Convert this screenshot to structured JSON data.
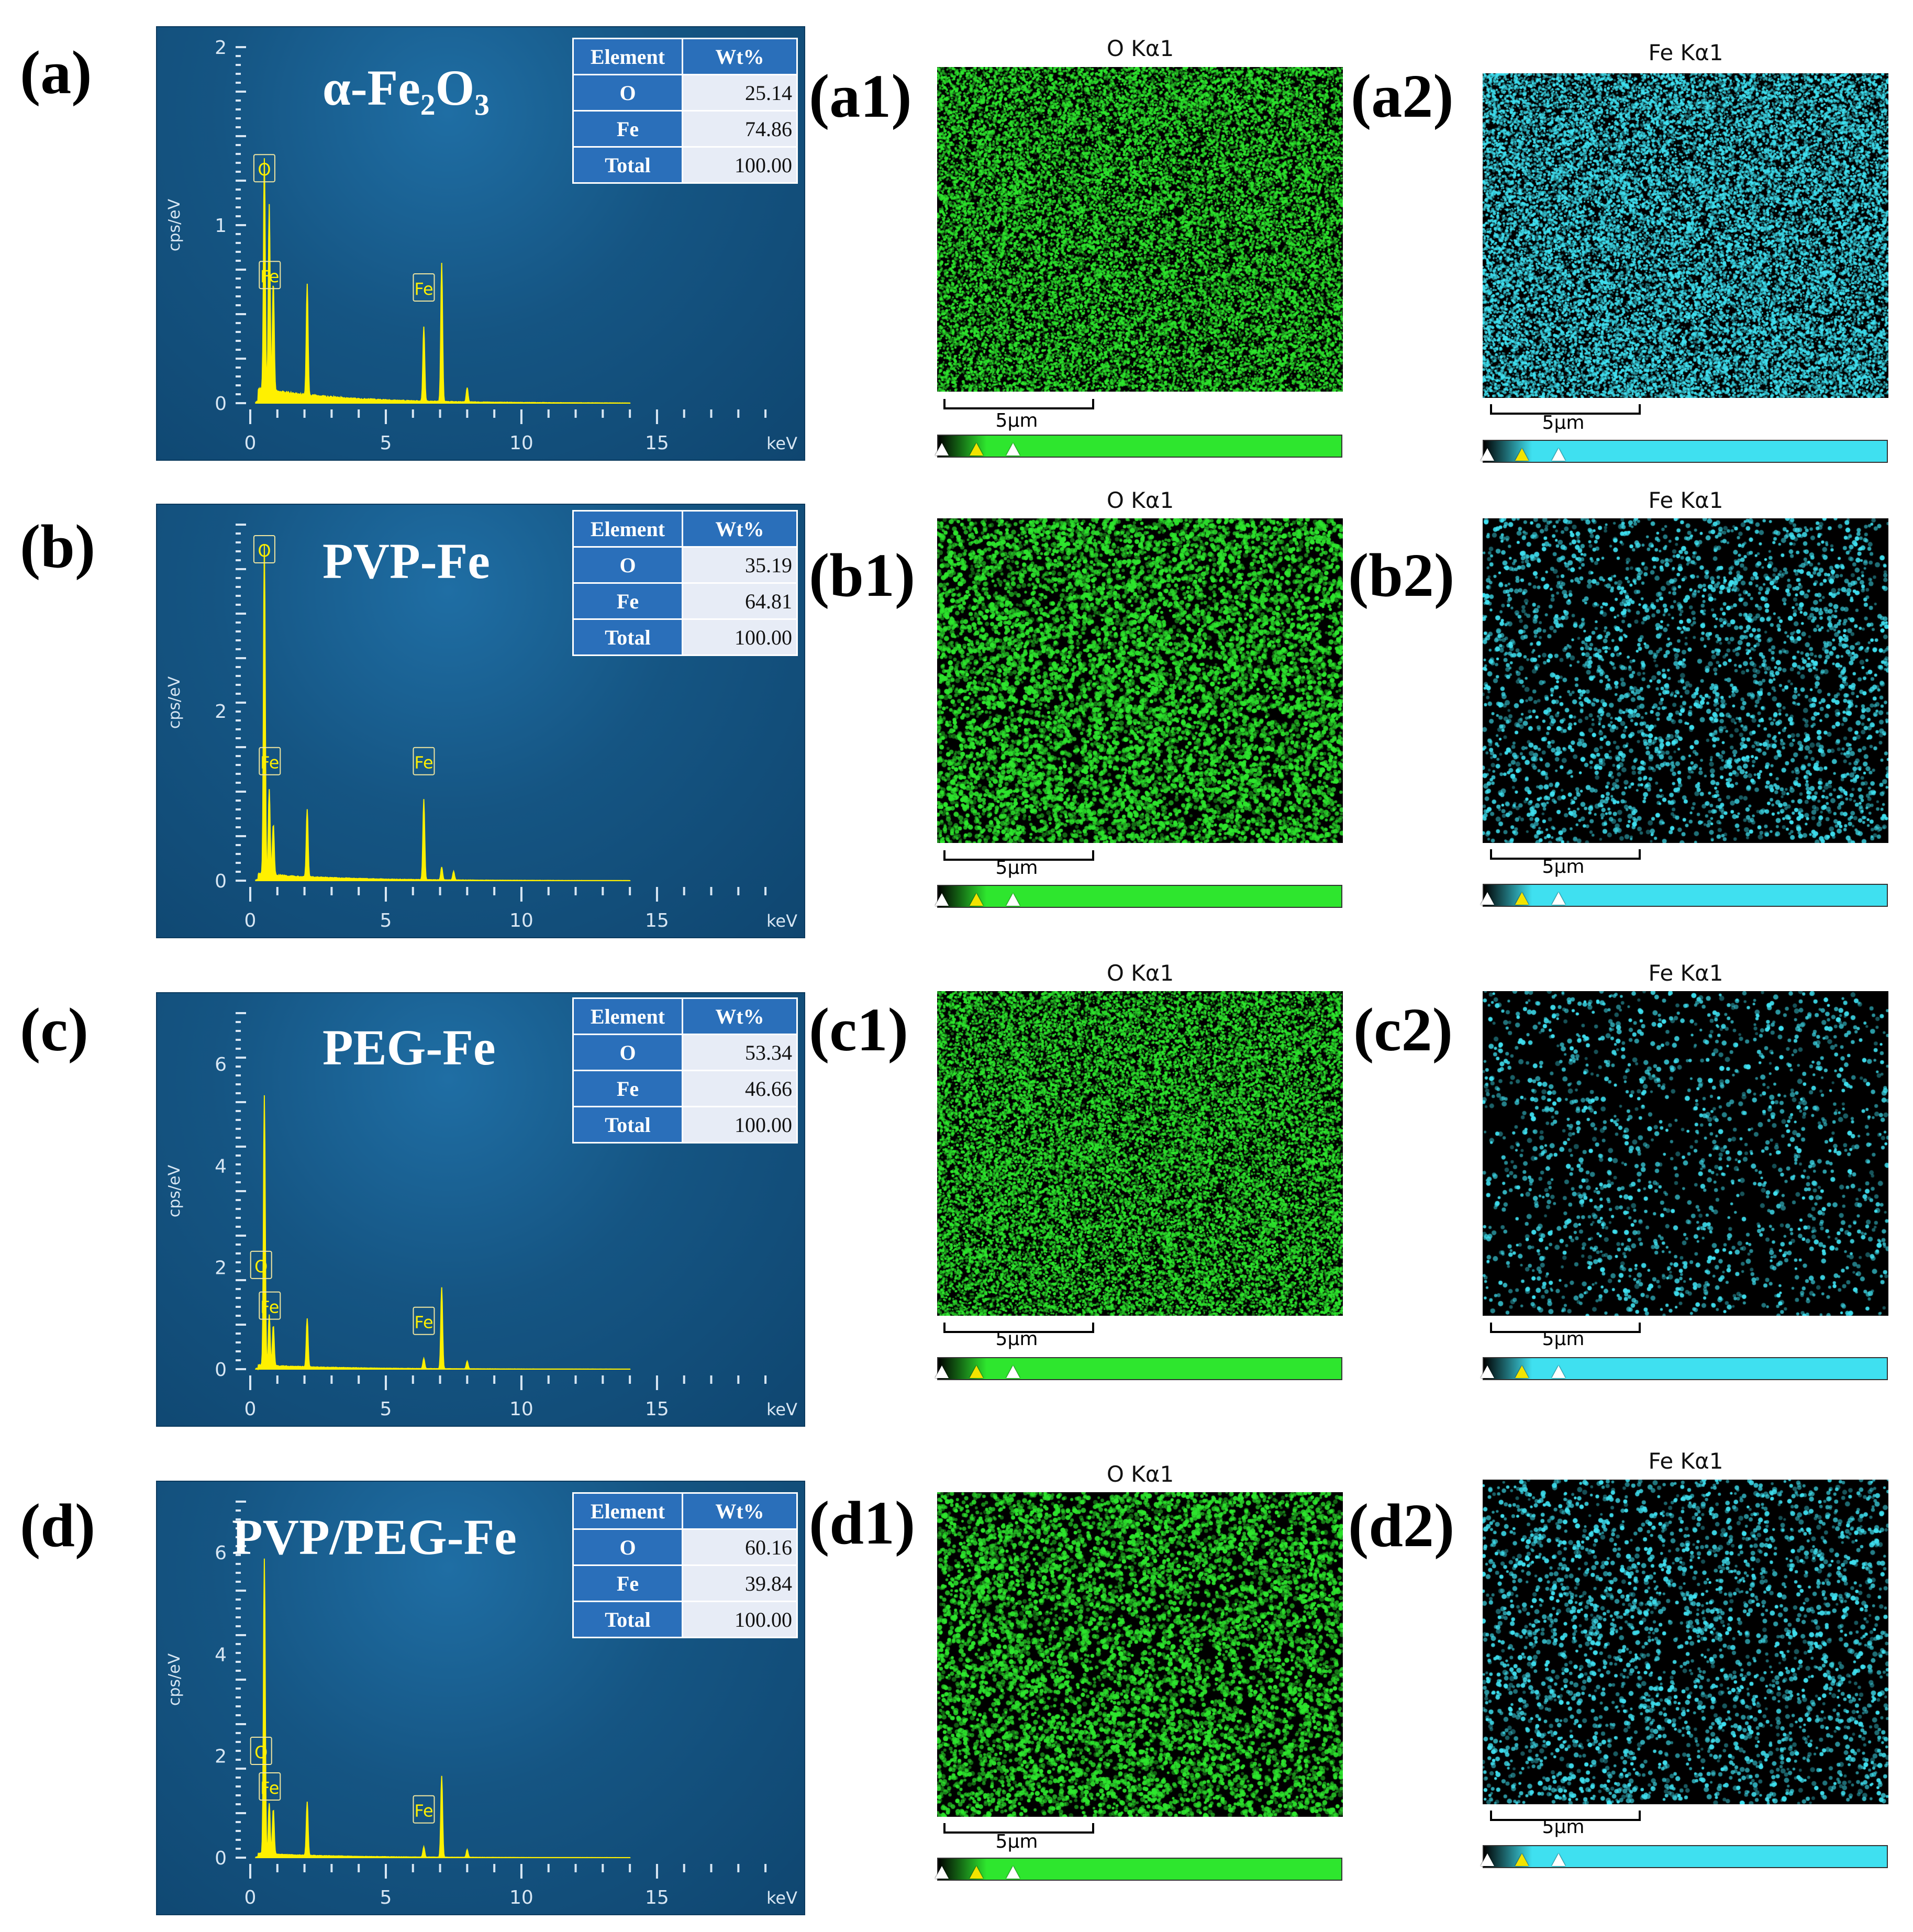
{
  "colors": {
    "spectrum_line": "#fff000",
    "o_map": "#2ee62e",
    "fe_map": "#3fe0f0",
    "table_header": "#2a6fba"
  },
  "panels": [
    {
      "label": "(a)",
      "sample": "α-Fe₂O₃",
      "table": {
        "h_element": "Element",
        "h_wt": "Wt%",
        "rows": [
          {
            "el": "O",
            "wt": "25.14"
          },
          {
            "el": "Fe",
            "wt": "74.86"
          },
          {
            "el": "Total",
            "wt": "100.00"
          }
        ]
      },
      "spectrum": {
        "ylabel": "cps/eV",
        "xunit": "keV",
        "yticks": [
          "0",
          "1",
          "2"
        ],
        "xticks": [
          "0",
          "5",
          "10",
          "15"
        ],
        "peak_labels": [
          "O",
          "Fe",
          "Fe"
        ]
      },
      "map1": {
        "label": "(a1)",
        "title": "O Kα1",
        "scale": "5μm"
      },
      "map2": {
        "label": "(a2)",
        "title": "Fe Kα1",
        "scale": "5μm"
      }
    },
    {
      "label": "(b)",
      "sample": "PVP-Fe",
      "table": {
        "h_element": "Element",
        "h_wt": "Wt%",
        "rows": [
          {
            "el": "O",
            "wt": "35.19"
          },
          {
            "el": "Fe",
            "wt": "64.81"
          },
          {
            "el": "Total",
            "wt": "100.00"
          }
        ]
      },
      "spectrum": {
        "ylabel": "cps/eV",
        "xunit": "keV",
        "yticks": [
          "0",
          "2"
        ],
        "xticks": [
          "0",
          "5",
          "10",
          "15"
        ],
        "peak_labels": [
          "O",
          "Fe",
          "Fe"
        ]
      },
      "map1": {
        "label": "(b1)",
        "title": "O Kα1",
        "scale": "5μm"
      },
      "map2": {
        "label": "(b2)",
        "title": "Fe Kα1",
        "scale": "5μm"
      }
    },
    {
      "label": "(c)",
      "sample": "PEG-Fe",
      "table": {
        "h_element": "Element",
        "h_wt": "Wt%",
        "rows": [
          {
            "el": "O",
            "wt": "53.34"
          },
          {
            "el": "Fe",
            "wt": "46.66"
          },
          {
            "el": "Total",
            "wt": "100.00"
          }
        ]
      },
      "spectrum": {
        "ylabel": "cps/eV",
        "xunit": "keV",
        "yticks": [
          "0",
          "2",
          "4",
          "6"
        ],
        "xticks": [
          "0",
          "5",
          "10",
          "15"
        ],
        "peak_labels": [
          "O",
          "Fe",
          "Fe"
        ]
      },
      "map1": {
        "label": "(c1)",
        "title": "O Kα1",
        "scale": "5μm"
      },
      "map2": {
        "label": "(c2)",
        "title": "Fe Kα1",
        "scale": "5μm"
      }
    },
    {
      "label": "(d)",
      "sample": "PVP/PEG-Fe",
      "table": {
        "h_element": "Element",
        "h_wt": "Wt%",
        "rows": [
          {
            "el": "O",
            "wt": "60.16"
          },
          {
            "el": "Fe",
            "wt": "39.84"
          },
          {
            "el": "Total",
            "wt": "100.00"
          }
        ]
      },
      "spectrum": {
        "ylabel": "cps/eV",
        "xunit": "keV",
        "yticks": [
          "0",
          "2",
          "4",
          "6"
        ],
        "xticks": [
          "0",
          "5",
          "10",
          "15"
        ],
        "peak_labels": [
          "O",
          "Fe",
          "Fe"
        ]
      },
      "map1": {
        "label": "(d1)",
        "title": "O Kα1",
        "scale": "5μm"
      },
      "map2": {
        "label": "(d2)",
        "title": "Fe Kα1",
        "scale": "5μm"
      }
    }
  ]
}
